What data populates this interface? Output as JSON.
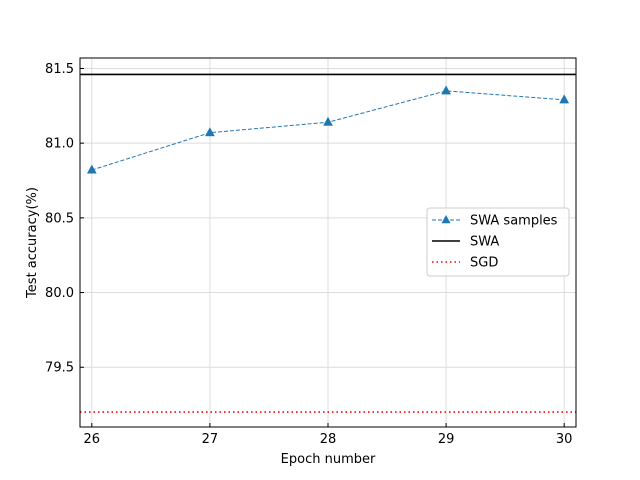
{
  "chart_data": {
    "type": "line",
    "title": "",
    "xlabel": "Epoch number",
    "ylabel": "Test accuracy(%)",
    "x": [
      26,
      27,
      28,
      29,
      30
    ],
    "xlim": [
      25.9,
      30.1
    ],
    "ylim": [
      79.1,
      81.57
    ],
    "xticks": [
      26,
      27,
      28,
      29,
      30
    ],
    "xtick_labels": [
      "26",
      "27",
      "28",
      "29",
      "30"
    ],
    "yticks": [
      79.5,
      80.0,
      80.5,
      81.0,
      81.5
    ],
    "ytick_labels": [
      "79.5",
      "80.0",
      "80.5",
      "81.0",
      "81.5"
    ],
    "grid": true,
    "legend_position": "center-right",
    "series": [
      {
        "name": "SWA samples",
        "kind": "line",
        "values": [
          80.82,
          81.07,
          81.14,
          81.35,
          81.29
        ],
        "color": "#1f77b4",
        "linestyle": "dashed",
        "marker": "triangle"
      },
      {
        "name": "SWA",
        "kind": "hline",
        "value": 81.46,
        "color": "#000000",
        "linestyle": "solid"
      },
      {
        "name": "SGD",
        "kind": "hline",
        "value": 79.2,
        "color": "#ff0000",
        "linestyle": "dotted"
      }
    ]
  }
}
